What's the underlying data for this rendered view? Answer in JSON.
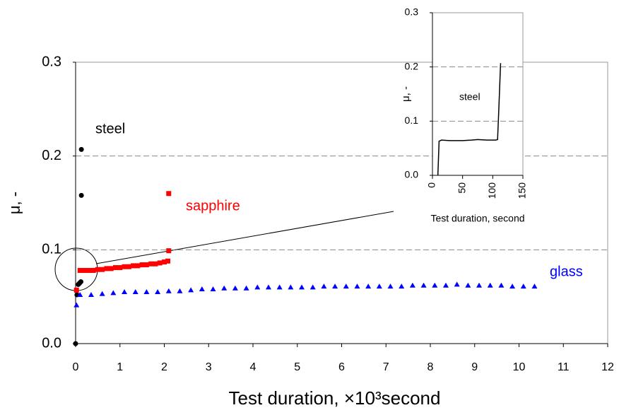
{
  "chart_data": [
    {
      "type": "scatter",
      "xlabel": "Test duration, ×10³second",
      "ylabel": "μ, -",
      "xlim": [
        0,
        12
      ],
      "xticks": [
        0,
        1,
        2,
        3,
        4,
        5,
        6,
        7,
        8,
        9,
        10,
        11,
        12
      ],
      "ylim": [
        0,
        0.3
      ],
      "yticks": [
        {
          "value": 0,
          "label": "0.0"
        },
        0.1,
        0.2,
        0.3
      ],
      "grid": true,
      "series": [
        {
          "name": "steel",
          "color": "#000000",
          "marker": "circle",
          "x": [
            0,
            0.03,
            0.06,
            0.08,
            0.1,
            0.12,
            0.13,
            0.13
          ],
          "values": [
            0,
            0.052,
            0.063,
            0.064,
            0.065,
            0.066,
            0.158,
            0.207
          ]
        },
        {
          "name": "sapphire",
          "color": "#ff0000",
          "marker": "square",
          "x": [
            0.02,
            0.1,
            0.2,
            0.3,
            0.4,
            0.5,
            0.6,
            0.7,
            0.8,
            0.9,
            1.0,
            1.1,
            1.2,
            1.3,
            1.4,
            1.5,
            1.6,
            1.7,
            1.8,
            1.9,
            2.0,
            2.08,
            2.1,
            2.1
          ],
          "values": [
            0.057,
            0.078,
            0.078,
            0.078,
            0.078,
            0.079,
            0.079,
            0.08,
            0.08,
            0.081,
            0.081,
            0.082,
            0.082,
            0.083,
            0.083,
            0.084,
            0.084,
            0.085,
            0.085,
            0.086,
            0.087,
            0.088,
            0.099,
            0.16
          ]
        },
        {
          "name": "glass",
          "color": "#0000ff",
          "marker": "triangle",
          "x": [
            0.02,
            0.1,
            0.35,
            0.6,
            0.85,
            1.1,
            1.35,
            1.6,
            1.85,
            2.1,
            2.35,
            2.6,
            2.85,
            3.1,
            3.35,
            3.6,
            3.85,
            4.1,
            4.35,
            4.6,
            4.85,
            5.1,
            5.35,
            5.6,
            5.85,
            6.1,
            6.35,
            6.6,
            6.85,
            7.1,
            7.35,
            7.6,
            7.85,
            8.1,
            8.35,
            8.6,
            8.85,
            9.1,
            9.35,
            9.6,
            9.85,
            10.1,
            10.35
          ],
          "values": [
            0.041,
            0.052,
            0.052,
            0.053,
            0.054,
            0.055,
            0.055,
            0.055,
            0.055,
            0.056,
            0.056,
            0.057,
            0.058,
            0.058,
            0.059,
            0.059,
            0.059,
            0.06,
            0.06,
            0.06,
            0.06,
            0.06,
            0.06,
            0.061,
            0.061,
            0.061,
            0.061,
            0.061,
            0.061,
            0.061,
            0.061,
            0.062,
            0.062,
            0.062,
            0.062,
            0.063,
            0.062,
            0.062,
            0.062,
            0.062,
            0.061,
            0.061,
            0.061
          ]
        }
      ]
    },
    {
      "type": "line",
      "xlabel": "Test duration, second",
      "ylabel": "μ, -",
      "xlim": [
        0,
        150
      ],
      "xticks": [
        0,
        50,
        100,
        150
      ],
      "ylim": [
        0,
        0.3
      ],
      "yticks": [
        {
          "value": 0,
          "label": "0.0"
        },
        0.1,
        0.2,
        0.3
      ],
      "grid": true,
      "series": [
        {
          "name": "steel",
          "color": "#000000",
          "x": [
            9,
            11,
            15,
            30,
            50,
            65,
            75,
            90,
            105,
            108,
            110,
            113
          ],
          "values": [
            0,
            0.063,
            0.065,
            0.064,
            0.064,
            0.065,
            0.066,
            0.065,
            0.065,
            0.066,
            0.12,
            0.207
          ]
        }
      ]
    }
  ]
}
